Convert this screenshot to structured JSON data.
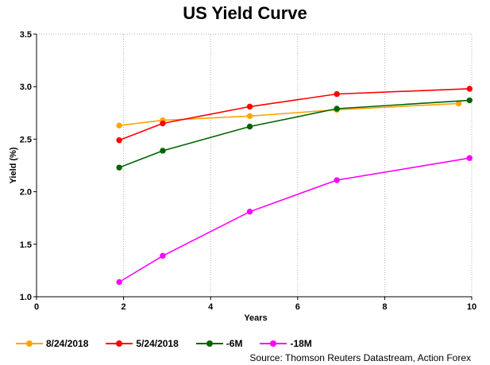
{
  "chart_data": {
    "type": "line",
    "title": "US Yield Curve",
    "xlabel": "Years",
    "ylabel": "Yield (%)",
    "xlim": [
      0,
      10
    ],
    "ylim": [
      1.0,
      3.5
    ],
    "xticks": [
      0,
      2,
      4,
      6,
      8,
      10
    ],
    "yticks": [
      "1.0",
      "1.5",
      "2.0",
      "2.5",
      "3.0",
      "3.5"
    ],
    "grid": "vertical dotted",
    "legend_position": "bottom",
    "series": [
      {
        "name": "8/24/2018",
        "color": "#ffa500",
        "x": [
          1.9,
          2.9,
          4.9,
          6.9,
          9.7
        ],
        "y": [
          2.63,
          2.68,
          2.72,
          2.78,
          2.84
        ]
      },
      {
        "name": "5/24/2018",
        "color": "#ff0000",
        "x": [
          1.9,
          2.9,
          4.9,
          6.9,
          9.95
        ],
        "y": [
          2.49,
          2.65,
          2.81,
          2.93,
          2.98
        ]
      },
      {
        "name": "-6M",
        "color": "#006400",
        "x": [
          1.9,
          2.9,
          4.9,
          6.9,
          9.95
        ],
        "y": [
          2.23,
          2.39,
          2.62,
          2.79,
          2.87
        ]
      },
      {
        "name": "-18M",
        "color": "#ff00ff",
        "x": [
          1.9,
          2.9,
          4.9,
          6.9,
          9.95
        ],
        "y": [
          1.14,
          1.39,
          1.81,
          2.11,
          2.32
        ]
      }
    ],
    "source": "Source: Thomson Reuters Datastream, Action Forex"
  }
}
